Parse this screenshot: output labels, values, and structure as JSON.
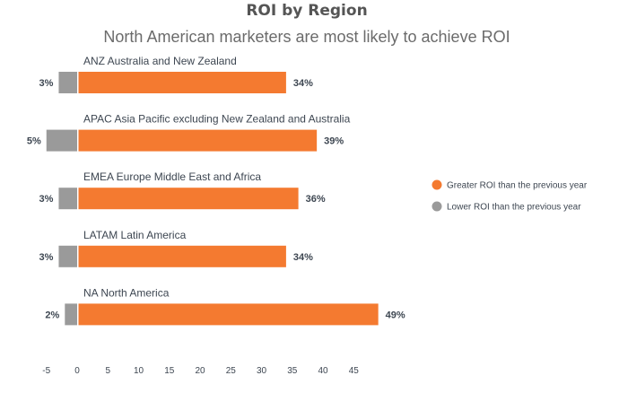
{
  "chart_data": {
    "type": "bar",
    "orientation": "horizontal",
    "title": "ROI by Region",
    "subtitle": "North American marketers are most likely to achieve ROI",
    "categories": [
      "ANZ  Australia and New Zealand",
      "APAC  Asia Pacific excluding New Zealand and Australia",
      "EMEA  Europe Middle East and Africa",
      "LATAM  Latin America",
      "NA  North America"
    ],
    "series": [
      {
        "name": "Greater ROI than the previous year",
        "color": "#f47a30",
        "values": [
          34,
          39,
          36,
          34,
          49
        ],
        "labels": [
          "34%",
          "39%",
          "36%",
          "34%",
          "49%"
        ]
      },
      {
        "name": "Lower ROI than the previous year",
        "color": "#9a9a9a",
        "values": [
          -3,
          -5,
          -3,
          -3,
          -2
        ],
        "labels": [
          "3%",
          "5%",
          "3%",
          "3%",
          "2%"
        ]
      }
    ],
    "x_ticks": [
      "-5",
      "0",
      "5",
      "10",
      "15",
      "20",
      "25",
      "30",
      "35",
      "40",
      "45"
    ],
    "x_tick_values": [
      -5,
      0,
      5,
      10,
      15,
      20,
      25,
      30,
      35,
      40,
      45
    ],
    "xlim": [
      -5,
      49
    ],
    "grid": false,
    "legend_position": "right"
  }
}
